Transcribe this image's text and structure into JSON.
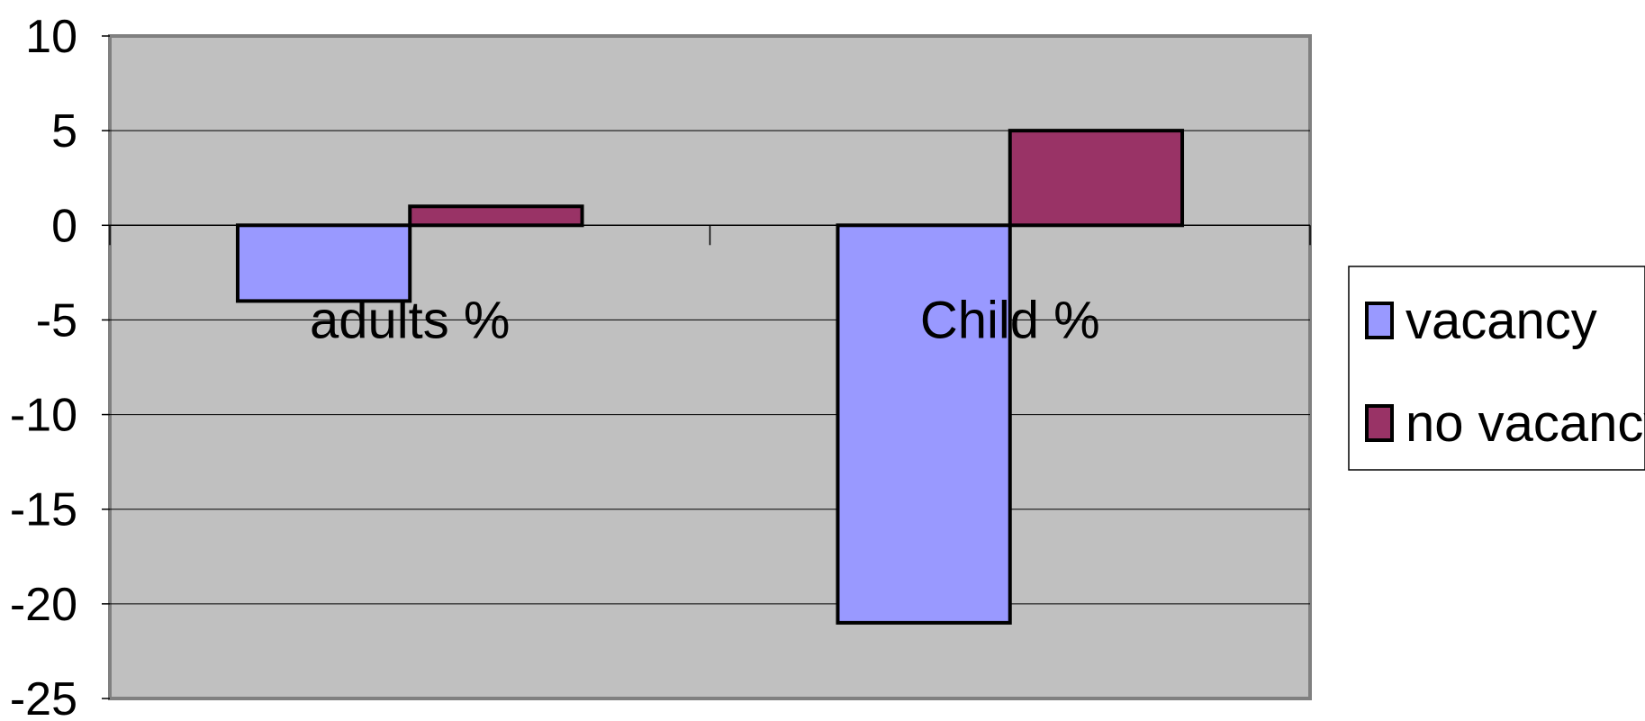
{
  "chart_data": {
    "type": "bar",
    "categories": [
      "adults %",
      "Child %"
    ],
    "series": [
      {
        "name": "vacancy",
        "values": [
          -4,
          -21
        ],
        "color": "#9999ff"
      },
      {
        "name": "no vacancy",
        "values": [
          1,
          5
        ],
        "color": "#993366"
      }
    ],
    "ylim": [
      -25,
      10
    ],
    "yticks": [
      10,
      5,
      0,
      -5,
      -10,
      -15,
      -20,
      -25
    ],
    "grid": true,
    "legend_position": "right",
    "plot_background": "#c0c0c0"
  }
}
